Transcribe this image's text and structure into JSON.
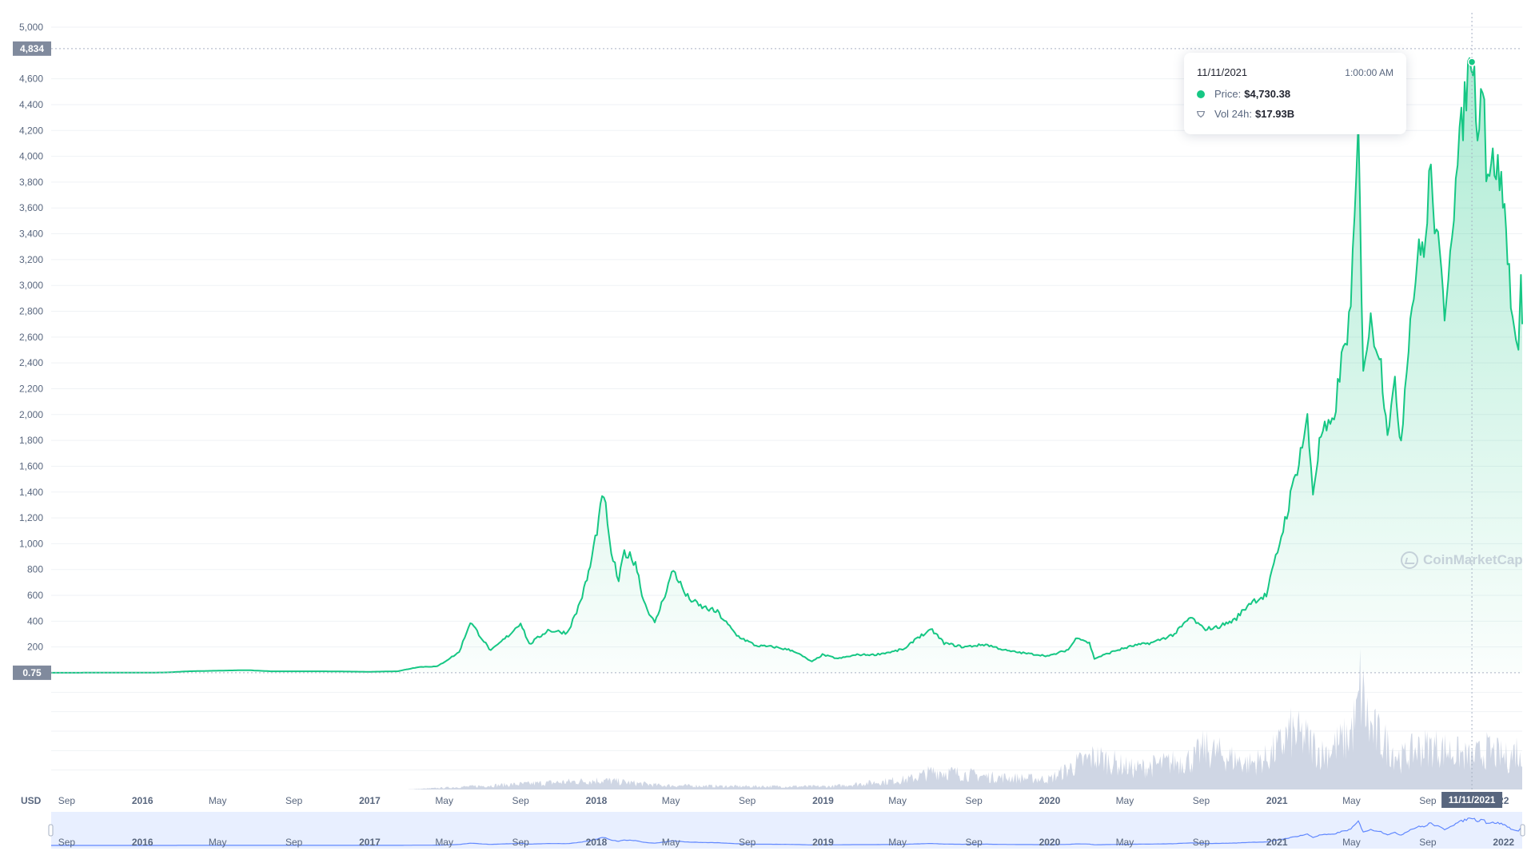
{
  "currency_label": "USD",
  "watermark": "CoinMarketCap",
  "badges": {
    "high": "4,834",
    "low": "0.75"
  },
  "tooltip": {
    "date": "11/11/2021",
    "time": "1:00:00 AM",
    "price_label": "Price:",
    "price_value": "$4,730.38",
    "volume_label": "Vol 24h:",
    "volume_value": "$17.93B"
  },
  "crosshair_label": "11/11/2021",
  "colors": {
    "price_line": "#16c784",
    "price_fill": "#16c784",
    "volume": "#cfd6e4",
    "badge": "#808a9d",
    "navigator_fill": "#e8efff",
    "navigator_line": "#6188ff",
    "grid": "#eff2f5"
  },
  "chart_data": {
    "type": "area",
    "ylim": [
      0,
      5000
    ],
    "y_ticks": [
      200,
      400,
      600,
      800,
      1000,
      1200,
      1400,
      1600,
      1800,
      2000,
      2200,
      2400,
      2600,
      2800,
      3000,
      3200,
      3400,
      3600,
      3800,
      4000,
      4200,
      4400,
      4600,
      5000
    ],
    "y_tick_labels": [
      "200",
      "400",
      "600",
      "800",
      "1,000",
      "1,200",
      "1,400",
      "1,600",
      "1,800",
      "2,000",
      "2,200",
      "2,400",
      "2,600",
      "2,800",
      "3,000",
      "3,200",
      "3,400",
      "3,600",
      "3,800",
      "4,000",
      "4,200",
      "4,400",
      "4,600",
      "5,000"
    ],
    "x_start": "2015-08-07",
    "x_end": "2022-01-31",
    "x_ticks": [
      {
        "date": "2015-09-01",
        "label": "Sep",
        "bold": false
      },
      {
        "date": "2016-01-01",
        "label": "2016",
        "bold": true
      },
      {
        "date": "2016-05-01",
        "label": "May",
        "bold": false
      },
      {
        "date": "2016-09-01",
        "label": "Sep",
        "bold": false
      },
      {
        "date": "2017-01-01",
        "label": "2017",
        "bold": true
      },
      {
        "date": "2017-05-01",
        "label": "May",
        "bold": false
      },
      {
        "date": "2017-09-01",
        "label": "Sep",
        "bold": false
      },
      {
        "date": "2018-01-01",
        "label": "2018",
        "bold": true
      },
      {
        "date": "2018-05-01",
        "label": "May",
        "bold": false
      },
      {
        "date": "2018-09-01",
        "label": "Sep",
        "bold": false
      },
      {
        "date": "2019-01-01",
        "label": "2019",
        "bold": true
      },
      {
        "date": "2019-05-01",
        "label": "May",
        "bold": false
      },
      {
        "date": "2019-09-01",
        "label": "Sep",
        "bold": false
      },
      {
        "date": "2020-01-01",
        "label": "2020",
        "bold": true
      },
      {
        "date": "2020-05-01",
        "label": "May",
        "bold": false
      },
      {
        "date": "2020-09-01",
        "label": "Sep",
        "bold": false
      },
      {
        "date": "2021-01-01",
        "label": "2021",
        "bold": true
      },
      {
        "date": "2021-05-01",
        "label": "May",
        "bold": false
      },
      {
        "date": "2021-09-01",
        "label": "Sep",
        "bold": false
      },
      {
        "date": "2022-01-01",
        "label": "22",
        "bold": true
      }
    ],
    "navigator_ticks": [
      {
        "date": "2015-09-01",
        "label": "Sep",
        "bold": false
      },
      {
        "date": "2016-01-01",
        "label": "2016",
        "bold": true
      },
      {
        "date": "2016-05-01",
        "label": "May",
        "bold": false
      },
      {
        "date": "2016-09-01",
        "label": "Sep",
        "bold": false
      },
      {
        "date": "2017-01-01",
        "label": "2017",
        "bold": true
      },
      {
        "date": "2017-05-01",
        "label": "May",
        "bold": false
      },
      {
        "date": "2017-09-01",
        "label": "Sep",
        "bold": false
      },
      {
        "date": "2018-01-01",
        "label": "2018",
        "bold": true
      },
      {
        "date": "2018-05-01",
        "label": "May",
        "bold": false
      },
      {
        "date": "2018-09-01",
        "label": "Sep",
        "bold": false
      },
      {
        "date": "2019-01-01",
        "label": "2019",
        "bold": true
      },
      {
        "date": "2019-05-01",
        "label": "May",
        "bold": false
      },
      {
        "date": "2019-09-01",
        "label": "Sep",
        "bold": false
      },
      {
        "date": "2020-01-01",
        "label": "2020",
        "bold": true
      },
      {
        "date": "2020-05-01",
        "label": "May",
        "bold": false
      },
      {
        "date": "2020-09-01",
        "label": "Sep",
        "bold": false
      },
      {
        "date": "2021-01-01",
        "label": "2021",
        "bold": true
      },
      {
        "date": "2021-05-01",
        "label": "May",
        "bold": false
      },
      {
        "date": "2021-09-01",
        "label": "Sep",
        "bold": false
      },
      {
        "date": "2022-01-01",
        "label": "2022",
        "bold": true
      }
    ],
    "series": [
      {
        "type": "area",
        "points": [
          [
            "2015-08-07",
            0.75
          ],
          [
            "2015-10-15",
            1
          ],
          [
            "2015-12-31",
            1
          ],
          [
            "2016-02-10",
            3
          ],
          [
            "2016-03-15",
            12
          ],
          [
            "2016-06-17",
            21
          ],
          [
            "2016-07-25",
            12
          ],
          [
            "2016-10-15",
            12
          ],
          [
            "2016-12-31",
            8
          ],
          [
            "2017-02-15",
            12
          ],
          [
            "2017-03-20",
            45
          ],
          [
            "2017-04-20",
            50
          ],
          [
            "2017-05-25",
            160
          ],
          [
            "2017-06-12",
            395
          ],
          [
            "2017-07-15",
            170
          ],
          [
            "2017-08-15",
            300
          ],
          [
            "2017-09-01",
            390
          ],
          [
            "2017-09-15",
            220
          ],
          [
            "2017-10-15",
            330
          ],
          [
            "2017-11-15",
            310
          ],
          [
            "2017-11-30",
            470
          ],
          [
            "2017-12-12",
            640
          ],
          [
            "2017-12-22",
            820
          ],
          [
            "2018-01-13",
            1400
          ],
          [
            "2018-01-22",
            1000
          ],
          [
            "2018-02-06",
            700
          ],
          [
            "2018-02-15",
            940
          ],
          [
            "2018-03-05",
            860
          ],
          [
            "2018-03-18",
            560
          ],
          [
            "2018-04-05",
            380
          ],
          [
            "2018-05-05",
            800
          ],
          [
            "2018-05-25",
            600
          ],
          [
            "2018-06-15",
            520
          ],
          [
            "2018-07-15",
            470
          ],
          [
            "2018-08-15",
            290
          ],
          [
            "2018-09-15",
            210
          ],
          [
            "2018-10-15",
            200
          ],
          [
            "2018-11-15",
            170
          ],
          [
            "2018-12-14",
            85
          ],
          [
            "2018-12-31",
            140
          ],
          [
            "2019-01-25",
            110
          ],
          [
            "2019-02-25",
            140
          ],
          [
            "2019-03-25",
            140
          ],
          [
            "2019-04-25",
            165
          ],
          [
            "2019-05-15",
            190
          ],
          [
            "2019-05-31",
            270
          ],
          [
            "2019-06-26",
            330
          ],
          [
            "2019-07-15",
            230
          ],
          [
            "2019-08-15",
            200
          ],
          [
            "2019-09-20",
            220
          ],
          [
            "2019-10-25",
            170
          ],
          [
            "2019-11-25",
            150
          ],
          [
            "2019-12-31",
            130
          ],
          [
            "2020-01-31",
            180
          ],
          [
            "2020-02-15",
            280
          ],
          [
            "2020-03-05",
            230
          ],
          [
            "2020-03-13",
            110
          ],
          [
            "2020-04-15",
            170
          ],
          [
            "2020-05-15",
            210
          ],
          [
            "2020-06-15",
            235
          ],
          [
            "2020-07-20",
            300
          ],
          [
            "2020-08-15",
            430
          ],
          [
            "2020-09-05",
            340
          ],
          [
            "2020-09-25",
            350
          ],
          [
            "2020-10-25",
            410
          ],
          [
            "2020-11-20",
            550
          ],
          [
            "2020-12-15",
            600
          ],
          [
            "2021-01-05",
            1000
          ],
          [
            "2021-01-20",
            1300
          ],
          [
            "2021-02-19",
            1950
          ],
          [
            "2021-02-28",
            1400
          ],
          [
            "2021-03-13",
            1850
          ],
          [
            "2021-03-31",
            1900
          ],
          [
            "2021-04-15",
            2400
          ],
          [
            "2021-04-30",
            2800
          ],
          [
            "2021-05-12",
            4170
          ],
          [
            "2021-05-20",
            2400
          ],
          [
            "2021-06-01",
            2700
          ],
          [
            "2021-06-15",
            2500
          ],
          [
            "2021-06-28",
            1900
          ],
          [
            "2021-07-10",
            2200
          ],
          [
            "2021-07-20",
            1800
          ],
          [
            "2021-08-01",
            2600
          ],
          [
            "2021-08-15",
            3200
          ],
          [
            "2021-08-31",
            3400
          ],
          [
            "2021-09-03",
            3940
          ],
          [
            "2021-09-15",
            3400
          ],
          [
            "2021-09-28",
            2800
          ],
          [
            "2021-10-10",
            3500
          ],
          [
            "2021-10-25",
            4200
          ],
          [
            "2021-11-10",
            4834
          ],
          [
            "2021-11-20",
            4300
          ],
          [
            "2021-12-01",
            4600
          ],
          [
            "2021-12-04",
            3900
          ],
          [
            "2021-12-20",
            3950
          ],
          [
            "2021-12-31",
            3700
          ],
          [
            "2022-01-10",
            3100
          ],
          [
            "2022-01-21",
            2500
          ],
          [
            "2022-01-25",
            2400
          ],
          [
            "2022-01-29",
            3200
          ],
          [
            "2022-01-31",
            2700
          ]
        ]
      },
      {
        "type": "volume",
        "points": [
          [
            "2015-08-07",
            0
          ],
          [
            "2017-03-01",
            0
          ],
          [
            "2017-06-15",
            3
          ],
          [
            "2018-01-10",
            9
          ],
          [
            "2018-04-15",
            4
          ],
          [
            "2018-08-15",
            3
          ],
          [
            "2019-01-15",
            3
          ],
          [
            "2019-05-20",
            10
          ],
          [
            "2019-07-01",
            18
          ],
          [
            "2019-10-01",
            12
          ],
          [
            "2020-01-01",
            10
          ],
          [
            "2020-02-15",
            25
          ],
          [
            "2020-03-15",
            32
          ],
          [
            "2020-05-15",
            20
          ],
          [
            "2020-08-20",
            30
          ],
          [
            "2020-09-05",
            40
          ],
          [
            "2020-11-15",
            25
          ],
          [
            "2020-12-15",
            30
          ],
          [
            "2021-01-10",
            45
          ],
          [
            "2021-01-20",
            55
          ],
          [
            "2021-02-15",
            50
          ],
          [
            "2021-03-15",
            35
          ],
          [
            "2021-04-25",
            50
          ],
          [
            "2021-05-10",
            70
          ],
          [
            "2021-05-15",
            100
          ],
          [
            "2021-05-30",
            60
          ],
          [
            "2021-06-25",
            45
          ],
          [
            "2021-07-20",
            30
          ],
          [
            "2021-08-15",
            40
          ],
          [
            "2021-09-10",
            42
          ],
          [
            "2021-10-20",
            35
          ],
          [
            "2021-11-10",
            30
          ],
          [
            "2021-12-05",
            38
          ],
          [
            "2022-01-10",
            30
          ],
          [
            "2022-01-22",
            40
          ],
          [
            "2022-01-31",
            20
          ]
        ]
      }
    ],
    "highlight": {
      "date": "2021-11-11",
      "price": 4730.38,
      "volume_billion_usd": 17.93
    },
    "reference_lines": {
      "high": 4834,
      "low": 0.75
    },
    "grid": true
  }
}
